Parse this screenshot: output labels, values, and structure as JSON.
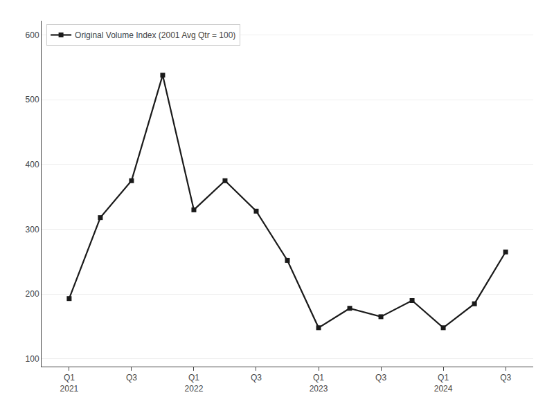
{
  "chart_data": {
    "type": "line",
    "categories": [
      "Q1\n2021",
      null,
      "Q3",
      null,
      "Q1\n2022",
      null,
      "Q3",
      null,
      "Q1\n2023",
      null,
      "Q3",
      null,
      "Q1\n2024",
      null,
      "Q3"
    ],
    "series": [
      {
        "name": "Original Volume Index (2001 Avg Qtr = 100)",
        "color": "#1a1a1a",
        "marker": "square",
        "values": [
          193,
          318,
          375,
          538,
          330,
          375,
          328,
          252,
          148,
          178,
          165,
          190,
          148,
          185,
          265
        ]
      }
    ],
    "ylim": [
      88,
      622
    ],
    "yticks": [
      100,
      200,
      300,
      400,
      500,
      600
    ],
    "grid": "y",
    "legend": "upper left"
  }
}
